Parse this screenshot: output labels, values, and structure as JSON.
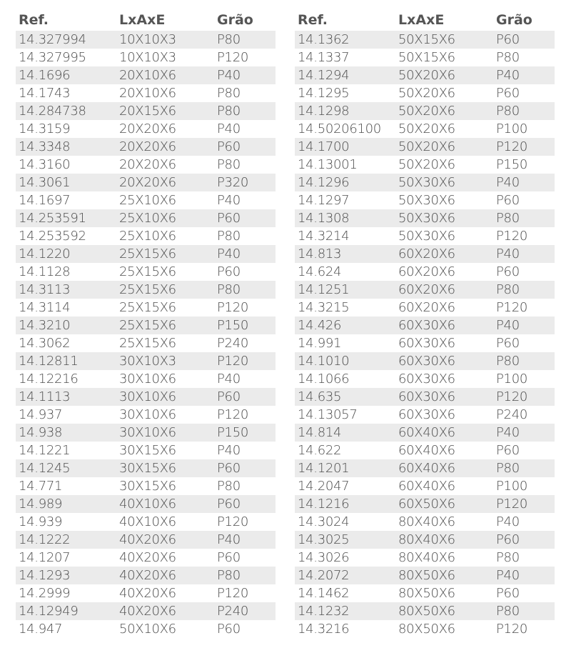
{
  "headers": [
    "Ref.",
    "LxAxE",
    "Grão"
  ],
  "tables": [
    {
      "rows": [
        [
          "14.327994",
          "10X10X3",
          "P80"
        ],
        [
          "14.327995",
          "10X10X3",
          "P120"
        ],
        [
          "14.1696",
          "20X10X6",
          "P40"
        ],
        [
          "14.1743",
          "20X10X6",
          "P80"
        ],
        [
          "14.284738",
          "20X15X6",
          "P80"
        ],
        [
          "14.3159",
          "20X20X6",
          "P40"
        ],
        [
          "14.3348",
          "20X20X6",
          "P60"
        ],
        [
          "14.3160",
          "20X20X6",
          "P80"
        ],
        [
          "14.3061",
          "20X20X6",
          "P320"
        ],
        [
          "14.1697",
          "25X10X6",
          "P40"
        ],
        [
          "14.253591",
          "25X10X6",
          "P60"
        ],
        [
          "14.253592",
          "25X10X6",
          "P80"
        ],
        [
          "14.1220",
          "25X15X6",
          "P40"
        ],
        [
          "14.1128",
          "25X15X6",
          "P60"
        ],
        [
          "14.3113",
          "25X15X6",
          "P80"
        ],
        [
          "14.3114",
          "25X15X6",
          "P120"
        ],
        [
          "14.3210",
          "25X15X6",
          "P150"
        ],
        [
          "14.3062",
          "25X15X6",
          "P240"
        ],
        [
          "14.12811",
          "30X10X3",
          "P120"
        ],
        [
          "14.12216",
          "30X10X6",
          "P40"
        ],
        [
          "14.1113",
          "30X10X6",
          "P60"
        ],
        [
          "14.937",
          "30X10X6",
          "P120"
        ],
        [
          "14.938",
          "30X10X6",
          "P150"
        ],
        [
          "14.1221",
          "30X15X6",
          "P40"
        ],
        [
          "14.1245",
          "30X15X6",
          "P60"
        ],
        [
          "14.771",
          "30X15X6",
          "P80"
        ],
        [
          "14.989",
          "40X10X6",
          "P60"
        ],
        [
          "14.939",
          "40X10X6",
          "P120"
        ],
        [
          "14.1222",
          "40X20X6",
          "P40"
        ],
        [
          "14.1207",
          "40X20X6",
          "P60"
        ],
        [
          "14.1293",
          "40X20X6",
          "P80"
        ],
        [
          "14.2999",
          "40X20X6",
          "P120"
        ],
        [
          "14.12949",
          "40X20X6",
          "P240"
        ],
        [
          "14.947",
          "50X10X6",
          "P60"
        ]
      ]
    },
    {
      "rows": [
        [
          "14.1362",
          "50X15X6",
          "P60"
        ],
        [
          "14.1337",
          "50X15X6",
          "P80"
        ],
        [
          "14.1294",
          "50X20X6",
          "P40"
        ],
        [
          "14.1295",
          "50X20X6",
          "P60"
        ],
        [
          "14.1298",
          "50X20X6",
          "P80"
        ],
        [
          "14.50206100",
          "50X20X6",
          "P100"
        ],
        [
          "14.1700",
          "50X20X6",
          "P120"
        ],
        [
          "14.13001",
          "50X20X6",
          "P150"
        ],
        [
          "14.1296",
          "50X30X6",
          "P40"
        ],
        [
          "14.1297",
          "50X30X6",
          "P60"
        ],
        [
          "14.1308",
          "50X30X6",
          "P80"
        ],
        [
          "14.3214",
          "50X30X6",
          "P120"
        ],
        [
          "14.813",
          "60X20X6",
          "P40"
        ],
        [
          "14.624",
          "60X20X6",
          "P60"
        ],
        [
          "14.1251",
          "60X20X6",
          "P80"
        ],
        [
          "14.3215",
          "60X20X6",
          "P120"
        ],
        [
          "14.426",
          "60X30X6",
          "P40"
        ],
        [
          "14.991",
          "60X30X6",
          "P60"
        ],
        [
          "14.1010",
          "60X30X6",
          "P80"
        ],
        [
          "14.1066",
          "60X30X6",
          "P100"
        ],
        [
          "14.635",
          "60X30X6",
          "P120"
        ],
        [
          "14.13057",
          "60X30X6",
          "P240"
        ],
        [
          "14.814",
          "60X40X6",
          "P40"
        ],
        [
          "14.622",
          "60X40X6",
          "P60"
        ],
        [
          "14.1201",
          "60X40X6",
          "P80"
        ],
        [
          "14.2047",
          "60X40X6",
          "P100"
        ],
        [
          "14.1216",
          "60X50X6",
          "P120"
        ],
        [
          "14.3024",
          "80X40X6",
          "P40"
        ],
        [
          "14.3025",
          "80X40X6",
          "P60"
        ],
        [
          "14.3026",
          "80X40X6",
          "P80"
        ],
        [
          "14.2072",
          "80X50X6",
          "P40"
        ],
        [
          "14.1462",
          "80X50X6",
          "P60"
        ],
        [
          "14.1232",
          "80X50X6",
          "P80"
        ],
        [
          "14.3216",
          "80X50X6",
          "P120"
        ]
      ]
    }
  ],
  "colors": {
    "stripe": "#ebebeb",
    "text": "#4d4d4d",
    "header": "#555555"
  }
}
